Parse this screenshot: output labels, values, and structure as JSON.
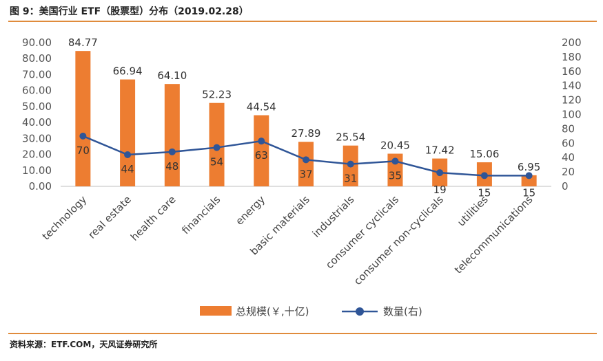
{
  "title": "图 9：美国行业 ETF（股票型）分布（2019.02.28）",
  "source": "资料来源：ETF.COM，天风证券研究所",
  "chart_data": {
    "type": "bar",
    "categories": [
      "technology",
      "real estate",
      "health care",
      "financials",
      "energy",
      "basic materials",
      "industrials",
      "consumer cyclicals",
      "consumer non-cyclicals",
      "utilities",
      "telecommunications"
    ],
    "series": [
      {
        "name": "总规模(￥,十亿)",
        "type": "bar",
        "axis": "left",
        "color": "#ed7d31",
        "values": [
          84.77,
          66.94,
          64.1,
          52.23,
          44.54,
          27.89,
          25.54,
          20.45,
          17.42,
          15.06,
          6.95
        ],
        "labels": [
          "84.77",
          "66.94",
          "64.10",
          "52.23",
          "44.54",
          "27.89",
          "25.54",
          "20.45",
          "17.42",
          "15.06",
          "6.95"
        ]
      },
      {
        "name": "数量(右)",
        "type": "line",
        "axis": "right",
        "color": "#2f5597",
        "values": [
          70,
          44,
          48,
          54,
          63,
          37,
          31,
          35,
          19,
          15,
          15
        ],
        "labels": [
          "70",
          "44",
          "48",
          "54",
          "63",
          "37",
          "31",
          "35",
          "19",
          "15",
          "15"
        ]
      }
    ],
    "y_left": {
      "min": 0,
      "max": 90,
      "step": 10,
      "ticks": [
        "0.00",
        "10.00",
        "20.00",
        "30.00",
        "40.00",
        "50.00",
        "60.00",
        "70.00",
        "80.00",
        "90.00"
      ]
    },
    "y_right": {
      "min": 0,
      "max": 200,
      "step": 20,
      "ticks": [
        "0",
        "20",
        "40",
        "60",
        "80",
        "100",
        "120",
        "140",
        "160",
        "180",
        "200"
      ]
    },
    "grid": false,
    "legend": "bottom"
  }
}
